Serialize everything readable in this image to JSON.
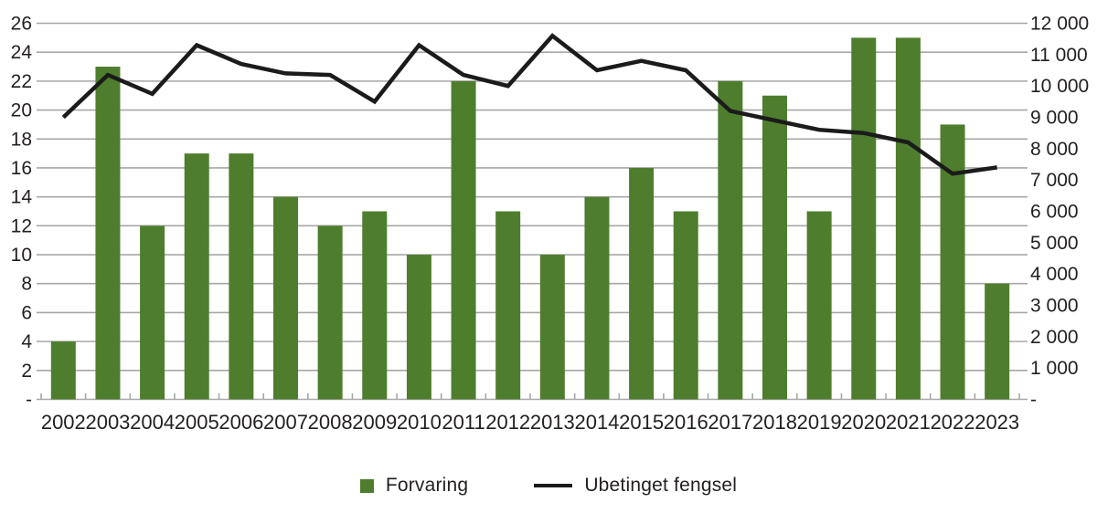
{
  "figure": {
    "background": "#ffffff"
  },
  "chart_data": {
    "type": "combo",
    "title": "",
    "categories": [
      "2002",
      "2003",
      "2004",
      "2005",
      "2006",
      "2007",
      "2008",
      "2009",
      "2010",
      "2011",
      "2012",
      "2013",
      "2014",
      "2015",
      "2016",
      "2017",
      "2018",
      "2019",
      "2020",
      "2021",
      "2022",
      "2023"
    ],
    "series": [
      {
        "name": "Forvaring",
        "type": "bar",
        "axis": "left",
        "color": "#4e7e2d",
        "values": [
          4,
          23,
          12,
          17,
          17,
          14,
          12,
          13,
          10,
          22,
          13,
          10,
          14,
          16,
          13,
          22,
          21,
          13,
          25,
          25,
          19,
          8
        ]
      },
      {
        "name": "Ubetinget fengsel",
        "type": "line",
        "axis": "right",
        "color": "#1b1b1b",
        "values": [
          9000,
          10350,
          9750,
          11300,
          10700,
          10400,
          10350,
          9500,
          11300,
          10350,
          10000,
          11600,
          10500,
          10800,
          10500,
          9200,
          8900,
          8600,
          8500,
          8200,
          7200,
          7400
        ]
      }
    ],
    "axes": {
      "left": {
        "min": 0,
        "max": 26,
        "step": 2,
        "zero_label": "-"
      },
      "right": {
        "min": 0,
        "max": 12000,
        "step": 1000,
        "zero_label": "-",
        "thousands_separator": " "
      }
    },
    "grid": true,
    "legend_position": "bottom",
    "colors": {
      "gridline": "#a7a7a7",
      "tick": "#a7a7a7",
      "text": "#231f20"
    }
  }
}
